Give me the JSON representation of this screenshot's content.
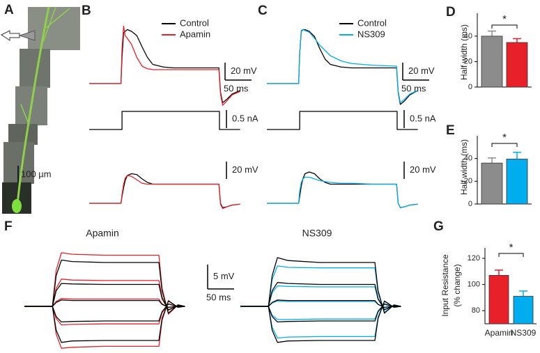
{
  "panel_a": {
    "label": "A",
    "scalebar": "100 µm"
  },
  "chart_data": [
    {
      "type": "line",
      "panel": "B",
      "legend": true,
      "x": [
        0,
        60,
        62,
        65,
        68,
        72,
        80,
        90,
        100,
        110,
        120,
        140,
        160,
        200,
        245,
        248,
        252,
        260,
        270,
        285
      ],
      "series": [
        {
          "name": "Control",
          "color": "#000000",
          "values": [
            0,
            0,
            30,
            58,
            60,
            62,
            60,
            55,
            42,
            30,
            22,
            19,
            18,
            18,
            18,
            -10,
            -22,
            -18,
            -12,
            -8
          ]
        },
        {
          "name": "Apamin",
          "color": "#e8202a",
          "values": [
            0,
            0,
            40,
            66,
            55,
            52,
            45,
            30,
            20,
            17,
            16,
            16,
            16,
            16,
            16,
            -12,
            -25,
            -20,
            -13,
            -9
          ]
        }
      ],
      "scalebars": [
        {
          "axis": "y",
          "value": 20,
          "label": "20 mV"
        },
        {
          "axis": "x",
          "value": 50,
          "label": "50 ms"
        }
      ]
    },
    {
      "type": "line",
      "x": [
        0,
        62,
        62,
        246,
        246,
        285
      ],
      "values": [
        0,
        0,
        0.5,
        0.5,
        0,
        0
      ],
      "color": "#000000",
      "scalebars": [
        {
          "axis": "y",
          "value": 0.5,
          "label": "0.5 nA"
        }
      ]
    },
    {
      "type": "line",
      "legend": false,
      "x": [
        0,
        60,
        62,
        65,
        68,
        72,
        80,
        90,
        100,
        110,
        120,
        140,
        160,
        200,
        245,
        248,
        252,
        260,
        270,
        285
      ],
      "series": [
        {
          "name": "Control",
          "color": "#000000",
          "values": [
            0,
            0,
            8,
            18,
            26,
            32,
            34,
            33,
            28,
            24,
            22,
            22,
            22,
            22,
            22,
            0,
            -5,
            -4,
            -2,
            -1
          ]
        },
        {
          "name": "Apamin",
          "color": "#e8202a",
          "values": [
            0,
            0,
            10,
            22,
            29,
            32,
            31,
            27,
            23,
            22,
            22,
            22,
            22,
            22,
            22,
            -1,
            -6,
            -4,
            -2,
            -1
          ]
        }
      ],
      "scalebars": [
        {
          "axis": "y",
          "value": 20,
          "label": "20 mV"
        }
      ]
    },
    {
      "type": "line",
      "panel": "C",
      "legend": true,
      "x": [
        0,
        60,
        62,
        65,
        68,
        72,
        80,
        90,
        100,
        110,
        120,
        140,
        160,
        200,
        245,
        248,
        252,
        260,
        270,
        285
      ],
      "series": [
        {
          "name": "Control",
          "color": "#000000",
          "values": [
            0,
            0,
            35,
            60,
            62,
            62,
            60,
            54,
            40,
            28,
            22,
            19,
            18,
            18,
            18,
            -10,
            -24,
            -20,
            -13,
            -8
          ]
        },
        {
          "name": "NS309",
          "color": "#00aeef",
          "values": [
            0,
            0,
            35,
            61,
            62,
            61,
            59,
            52,
            44,
            38,
            32,
            26,
            23,
            21,
            20,
            -9,
            -22,
            -18,
            -12,
            -8
          ]
        }
      ],
      "scalebars": [
        {
          "axis": "y",
          "value": 20,
          "label": "20 mV"
        },
        {
          "axis": "x",
          "value": 50,
          "label": "50 ms"
        }
      ]
    },
    {
      "type": "line",
      "x": [
        0,
        62,
        62,
        246,
        246,
        285
      ],
      "values": [
        0,
        0,
        0.5,
        0.5,
        0,
        0
      ],
      "color": "#000000",
      "scalebars": [
        {
          "axis": "y",
          "value": 0.5,
          "label": "0.5 nA"
        }
      ]
    },
    {
      "type": "line",
      "legend": false,
      "x": [
        0,
        60,
        62,
        65,
        68,
        72,
        80,
        90,
        100,
        110,
        120,
        140,
        160,
        200,
        245,
        248,
        252,
        260,
        270,
        285
      ],
      "series": [
        {
          "name": "Control",
          "color": "#000000",
          "values": [
            0,
            0,
            8,
            20,
            28,
            34,
            36,
            34,
            28,
            24,
            22,
            22,
            22,
            22,
            22,
            0,
            -5,
            -4,
            -2,
            -1
          ]
        },
        {
          "name": "NS309",
          "color": "#00aeef",
          "values": [
            0,
            0,
            14,
            24,
            28,
            30,
            30,
            28,
            26,
            25,
            24,
            23,
            23,
            22,
            22,
            0,
            -5,
            -4,
            -2,
            -1
          ]
        }
      ],
      "scalebars": [
        {
          "axis": "y",
          "value": 20,
          "label": "20 mV"
        }
      ]
    },
    {
      "type": "bar",
      "panel": "D",
      "ylabel": [
        "Half width (ms)"
      ],
      "categories": [
        null,
        null
      ],
      "values": [
        40,
        35
      ],
      "errors": [
        4,
        3
      ],
      "colors": [
        "#8c8c8c",
        "#e8202a"
      ],
      "ylim": [
        0,
        58
      ],
      "yticks": [
        0,
        20,
        40
      ],
      "annotation": "*"
    },
    {
      "type": "bar",
      "panel": "E",
      "ylabel": [
        "Half width (ms)"
      ],
      "categories": [
        null,
        null
      ],
      "values": [
        36,
        39.5
      ],
      "errors": [
        4.5,
        6
      ],
      "colors": [
        "#8c8c8c",
        "#00aeef"
      ],
      "ylim": [
        0,
        60
      ],
      "yticks": [
        0,
        20,
        40
      ],
      "annotation": "*"
    },
    {
      "type": "line",
      "panel": "F",
      "title": "Apamin",
      "legend": false,
      "x": [
        0,
        53,
        60,
        70,
        90,
        150,
        254,
        260,
        272,
        290,
        303
      ],
      "series": [
        {
          "color": "#e8202a",
          "values": [
            0,
            0,
            7.4,
            11,
            10.7,
            10.5,
            10.5,
            3.7,
            -1.6,
            0.3,
            0
          ]
        },
        {
          "color": "#e8202a",
          "values": [
            0,
            0,
            3.7,
            5.6,
            5.4,
            5.3,
            5.3,
            1.9,
            -0.8,
            0.2,
            0
          ]
        },
        {
          "color": "#e8202a",
          "values": [
            0,
            0,
            1,
            1.6,
            1.5,
            1.5,
            1.5,
            0.5,
            -0.2,
            0,
            0
          ]
        },
        {
          "color": "#e8202a",
          "values": [
            0,
            0,
            -2.5,
            -3.8,
            -3.7,
            -3.6,
            -3.6,
            -1.3,
            0.5,
            -0.1,
            0
          ]
        },
        {
          "color": "#e8202a",
          "values": [
            0,
            0,
            -5.7,
            -8.6,
            -8.4,
            -8.2,
            -8.2,
            -2.9,
            1.2,
            -0.2,
            0
          ]
        },
        {
          "color": "#000000",
          "values": [
            0,
            0,
            6.3,
            9.5,
            9.2,
            9,
            9,
            3.2,
            -1.4,
            0.3,
            0
          ]
        },
        {
          "color": "#000000",
          "values": [
            0,
            0,
            3.2,
            4.7,
            4.6,
            4.5,
            4.5,
            1.6,
            -0.7,
            0.1,
            0
          ]
        },
        {
          "color": "#000000",
          "values": [
            0,
            0,
            0.8,
            1.3,
            1.2,
            1.2,
            1.2,
            0.4,
            -0.2,
            0,
            0
          ]
        },
        {
          "color": "#000000",
          "values": [
            0,
            0,
            -2.1,
            -3.2,
            -3.1,
            -3,
            -3,
            -1.1,
            0.5,
            -0.1,
            0
          ]
        },
        {
          "color": "#000000",
          "values": [
            0,
            0,
            -4.9,
            -7.4,
            -7.1,
            -7,
            -7,
            -2.5,
            1.1,
            -0.2,
            0
          ]
        }
      ],
      "scalebars": [
        {
          "axis": "y",
          "value": 5,
          "label": "5 mV"
        },
        {
          "axis": "x",
          "value": 50,
          "label": "50 ms"
        }
      ]
    },
    {
      "type": "line",
      "title": "NS309",
      "legend": false,
      "x": [
        0,
        53,
        60,
        70,
        90,
        150,
        254,
        260,
        272,
        290,
        303
      ],
      "series": [
        {
          "color": "#00aeef",
          "values": [
            0,
            0,
            5.5,
            8.3,
            8,
            7.9,
            7.9,
            2.8,
            -1.2,
            0.2,
            0
          ]
        },
        {
          "color": "#00aeef",
          "values": [
            0,
            0,
            2.8,
            4.2,
            4.1,
            4,
            4,
            1.4,
            -0.6,
            0.1,
            0
          ]
        },
        {
          "color": "#00aeef",
          "values": [
            0,
            0,
            0.7,
            1.1,
            1,
            1,
            1,
            0.4,
            -0.2,
            0,
            0
          ]
        },
        {
          "color": "#00aeef",
          "values": [
            0,
            0,
            -1.8,
            -2.7,
            -2.7,
            -2.6,
            -2.6,
            -0.9,
            0.4,
            -0.1,
            0
          ]
        },
        {
          "color": "#00aeef",
          "values": [
            0,
            0,
            -4.3,
            -6.5,
            -6.3,
            -6.2,
            -6.2,
            -2.2,
            1,
            -0.2,
            0
          ]
        },
        {
          "color": "#000000",
          "values": [
            0,
            0,
            6.3,
            10,
            9.4,
            9,
            9,
            3.2,
            -1.4,
            0.3,
            0
          ]
        },
        {
          "color": "#000000",
          "values": [
            0,
            0,
            3.2,
            4.9,
            4.7,
            4.5,
            4.5,
            1.6,
            -0.7,
            0.1,
            0
          ]
        },
        {
          "color": "#000000",
          "values": [
            0,
            0,
            0.8,
            1.3,
            1.2,
            1.2,
            1.2,
            0.4,
            -0.2,
            0,
            0
          ]
        },
        {
          "color": "#000000",
          "values": [
            0,
            0,
            -2.1,
            -3.2,
            -3.1,
            -3,
            -3,
            -1.1,
            0.5,
            -0.1,
            0
          ]
        },
        {
          "color": "#000000",
          "values": [
            0,
            0,
            -4.9,
            -7.4,
            -7.1,
            -7,
            -7,
            -2.5,
            1.1,
            -0.2,
            0
          ]
        }
      ]
    },
    {
      "type": "bar",
      "panel": "G",
      "ylabel": [
        "Input Resistance",
        "(% change)"
      ],
      "categories": [
        "Apamin",
        "NS309"
      ],
      "values": [
        107,
        91
      ],
      "errors": [
        4,
        4
      ],
      "colors": [
        "#e8202a",
        "#00aeef"
      ],
      "ylim": [
        70,
        128
      ],
      "yticks": [
        80,
        100,
        120
      ],
      "annotation": "*"
    }
  ]
}
